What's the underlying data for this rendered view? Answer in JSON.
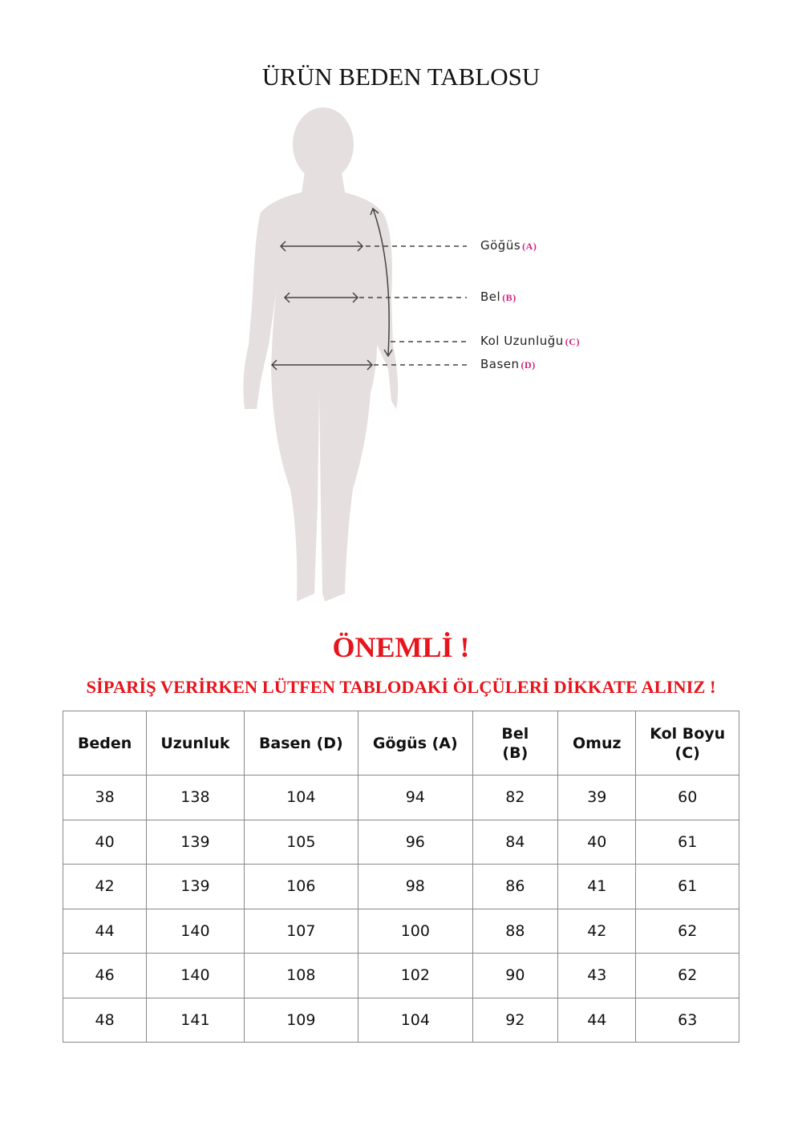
{
  "title": "ÜRÜN BEDEN TABLOSU",
  "figure": {
    "labels": [
      {
        "text": "Göğüs",
        "code": "(A)"
      },
      {
        "text": "Bel",
        "code": "(B)"
      },
      {
        "text": "Kol Uzunluğu",
        "code": "(C)"
      },
      {
        "text": "Basen",
        "code": "(D)"
      }
    ],
    "colors": {
      "silhouette": "#e6dfe0",
      "code": "#d0217a"
    }
  },
  "important": "ÖNEMLİ !",
  "note": "SİPARİŞ VERİRKEN LÜTFEN TABLODAKİ ÖLÇÜLERİ DİKKATE ALINIZ !",
  "table": {
    "headers": [
      [
        "Beden"
      ],
      [
        "Uzunluk"
      ],
      [
        "Basen (D)"
      ],
      [
        "Gögüs (A)"
      ],
      [
        "Bel",
        "(B)"
      ],
      [
        "Omuz"
      ],
      [
        "Kol Boyu",
        "(C)"
      ]
    ],
    "rows": [
      [
        "38",
        "138",
        "104",
        "94",
        "82",
        "39",
        "60"
      ],
      [
        "40",
        "139",
        "105",
        "96",
        "84",
        "40",
        "61"
      ],
      [
        "42",
        "139",
        "106",
        "98",
        "86",
        "41",
        "61"
      ],
      [
        "44",
        "140",
        "107",
        "100",
        "88",
        "42",
        "62"
      ],
      [
        "46",
        "140",
        "108",
        "102",
        "90",
        "43",
        "62"
      ],
      [
        "48",
        "141",
        "109",
        "104",
        "92",
        "44",
        "63"
      ]
    ]
  },
  "accent_color": "#e8141c"
}
